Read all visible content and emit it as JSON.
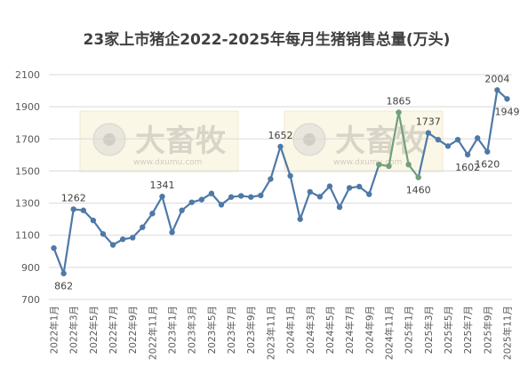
{
  "chart_data": {
    "type": "line",
    "title": "23家上市猪企2022-2025年每月生猪销售总量(万头)",
    "ylim": [
      700,
      2100
    ],
    "yticks": [
      700,
      900,
      1100,
      1300,
      1500,
      1700,
      1900,
      2100
    ],
    "grid": "horizontal",
    "series_color": "#4e79a7",
    "highlight_color": "#70a07a",
    "watermark": "大畜牧",
    "watermark_url": "www.dxumu.com",
    "x": [
      "2022年1月",
      "2022年2月",
      "2022年3月",
      "2022年4月",
      "2022年5月",
      "2022年6月",
      "2022年7月",
      "2022年8月",
      "2022年9月",
      "2022年10月",
      "2022年11月",
      "2022年12月",
      "2023年1月",
      "2023年2月",
      "2023年3月",
      "2023年4月",
      "2023年5月",
      "2023年6月",
      "2023年7月",
      "2023年8月",
      "2023年9月",
      "2023年10月",
      "2023年11月",
      "2023年12月",
      "2024年1月",
      "2024年2月",
      "2024年3月",
      "2024年4月",
      "2024年5月",
      "2024年6月",
      "2024年7月",
      "2024年8月",
      "2024年9月",
      "2024年10月",
      "2024年11月",
      "2024年12月",
      "2025年1月",
      "2025年2月",
      "2025年3月",
      "2025年4月",
      "2025年5月",
      "2025年6月",
      "2025年7月",
      "2025年8月",
      "2025年9月",
      "2025年10月",
      "2025年11月"
    ],
    "xtick_labels": [
      "2022年1月",
      "2022年3月",
      "2022年5月",
      "2022年7月",
      "2022年9月",
      "2022年11月",
      "2023年1月",
      "2023年3月",
      "2023年5月",
      "2023年7月",
      "2023年9月",
      "2023年11月",
      "2024年1月",
      "2024年3月",
      "2024年5月",
      "2024年7月",
      "2024年9月",
      "2024年11月",
      "2025年1月",
      "2025年3月",
      "2025年5月",
      "2025年7月",
      "2025年9月",
      "2025年11月"
    ],
    "values": [
      1020,
      862,
      1262,
      1255,
      1192,
      1108,
      1040,
      1075,
      1085,
      1150,
      1235,
      1341,
      1118,
      1255,
      1305,
      1322,
      1360,
      1290,
      1338,
      1345,
      1338,
      1348,
      1450,
      1652,
      1470,
      1200,
      1370,
      1340,
      1405,
      1275,
      1395,
      1403,
      1355,
      1540,
      1530,
      1865,
      1540,
      1460,
      1737,
      1695,
      1655,
      1695,
      1602,
      1705,
      1620,
      2004,
      1949
    ],
    "highlight_range": [
      33,
      37
    ],
    "data_labels": [
      {
        "index": 1,
        "text": "862",
        "pos": "below"
      },
      {
        "index": 2,
        "text": "1262",
        "pos": "above"
      },
      {
        "index": 11,
        "text": "1341",
        "pos": "above"
      },
      {
        "index": 23,
        "text": "1652",
        "pos": "above"
      },
      {
        "index": 35,
        "text": "1865",
        "pos": "above"
      },
      {
        "index": 37,
        "text": "1460",
        "pos": "below"
      },
      {
        "index": 38,
        "text": "1737",
        "pos": "above"
      },
      {
        "index": 42,
        "text": "1602",
        "pos": "below"
      },
      {
        "index": 44,
        "text": "1620",
        "pos": "below"
      },
      {
        "index": 45,
        "text": "2004",
        "pos": "above"
      },
      {
        "index": 46,
        "text": "1949",
        "pos": "below"
      }
    ]
  }
}
